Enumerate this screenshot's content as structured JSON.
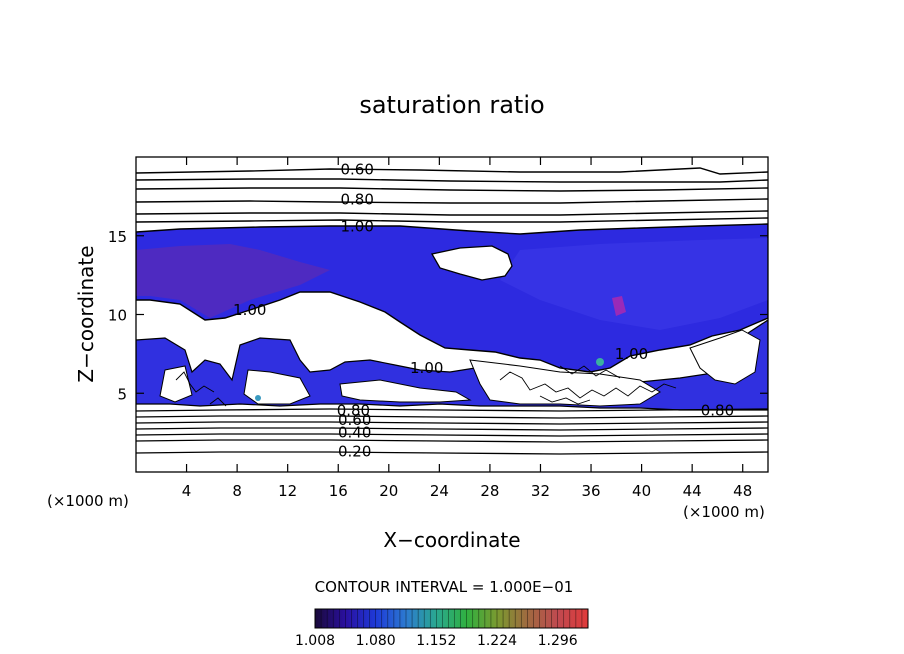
{
  "chart_data": {
    "type": "contour",
    "title": "saturation ratio",
    "xlabel": "X−coordinate",
    "ylabel": "Z−coordinate",
    "xunits_left": "(×1000 m)",
    "xunits_right": "(×1000 m)",
    "xlim": [
      0,
      50
    ],
    "ylim": [
      0,
      20
    ],
    "xticks": [
      4,
      8,
      12,
      16,
      20,
      24,
      28,
      32,
      36,
      40,
      44,
      48
    ],
    "yticks": [
      5,
      10,
      15
    ],
    "contour_labels": [
      {
        "text": "0.60",
        "x": 17.5,
        "y": 19.2
      },
      {
        "text": "0.80",
        "x": 17.5,
        "y": 17.3
      },
      {
        "text": "1.00",
        "x": 17.5,
        "y": 15.6
      },
      {
        "text": "1.00",
        "x": 9.0,
        "y": 10.3
      },
      {
        "text": "1.00",
        "x": 23.0,
        "y": 6.6
      },
      {
        "text": "1.00",
        "x": 39.2,
        "y": 7.5
      },
      {
        "text": "0.80",
        "x": 17.2,
        "y": 3.9
      },
      {
        "text": "0.60",
        "x": 17.3,
        "y": 3.3
      },
      {
        "text": "0.40",
        "x": 17.3,
        "y": 2.5
      },
      {
        "text": "0.20",
        "x": 17.3,
        "y": 1.3
      },
      {
        "text": "0.80",
        "x": 46.0,
        "y": 3.9
      }
    ],
    "contour_interval": "CONTOUR INTERVAL = 1.000E−01",
    "colorbar": {
      "min": 1.008,
      "max": 1.332,
      "tick_labels": [
        "1.008",
        "1.080",
        "1.152",
        "1.224",
        "1.296"
      ],
      "colors": [
        "#1a0a3a",
        "#2a10a0",
        "#1e3ad8",
        "#2c7ad0",
        "#2aa890",
        "#30b040",
        "#7a9a30",
        "#a06a40",
        "#c04a50",
        "#e03a3a"
      ]
    },
    "grid": false
  }
}
